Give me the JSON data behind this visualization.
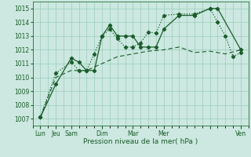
{
  "title": "",
  "xlabel": "Pression niveau de la mer( hPa )",
  "bg_color": "#cce8e0",
  "grid_color": "#99ccbb",
  "line_color": "#1a5c2a",
  "ylim": [
    1006.5,
    1015.5
  ],
  "xlim": [
    0,
    14
  ],
  "yticks": [
    1007,
    1008,
    1009,
    1010,
    1011,
    1012,
    1013,
    1014,
    1015
  ],
  "xtick_positions": [
    0.5,
    1.5,
    2.5,
    4.5,
    6.5,
    8.5,
    11.5,
    13.5
  ],
  "xtick_labels": [
    "Lun",
    "Jeu",
    "Sam",
    "Dim",
    "Mar",
    "Mer",
    "",
    "Ven"
  ],
  "series1_x": [
    0.5,
    1.5,
    2.5,
    3.0,
    3.5,
    4.0,
    4.5,
    5.0,
    5.5,
    6.0,
    6.5,
    7.0,
    7.5,
    8.0,
    8.5,
    9.5,
    10.5,
    11.5,
    12.0,
    13.5
  ],
  "series1_y": [
    1007.1,
    1009.5,
    1011.4,
    1011.1,
    1010.5,
    1010.5,
    1013.0,
    1013.8,
    1013.0,
    1013.0,
    1013.0,
    1012.2,
    1012.2,
    1012.2,
    1013.5,
    1014.5,
    1014.5,
    1015.0,
    1015.0,
    1012.0
  ],
  "series2_x": [
    0.5,
    1.5,
    2.5,
    3.0,
    3.5,
    4.0,
    4.5,
    5.0,
    5.5,
    6.0,
    6.5,
    7.0,
    7.5,
    8.0,
    8.5,
    9.5,
    10.5,
    11.5,
    12.0,
    12.5,
    13.0,
    13.5
  ],
  "series2_y": [
    1007.1,
    1010.3,
    1011.1,
    1010.5,
    1010.5,
    1011.7,
    1013.0,
    1013.5,
    1012.8,
    1012.2,
    1012.2,
    1012.5,
    1013.3,
    1013.2,
    1014.5,
    1014.6,
    1014.6,
    1015.0,
    1014.0,
    1013.0,
    1011.5,
    1011.8
  ],
  "series3_x": [
    0.5,
    1.5,
    2.5,
    3.5,
    4.5,
    5.5,
    6.5,
    7.5,
    8.5,
    9.5,
    10.5,
    11.5,
    12.5,
    13.5
  ],
  "series3_y": [
    1007.1,
    1010.0,
    1010.5,
    1010.5,
    1011.0,
    1011.5,
    1011.7,
    1011.9,
    1012.0,
    1012.2,
    1011.8,
    1011.9,
    1011.7,
    1012.0
  ]
}
